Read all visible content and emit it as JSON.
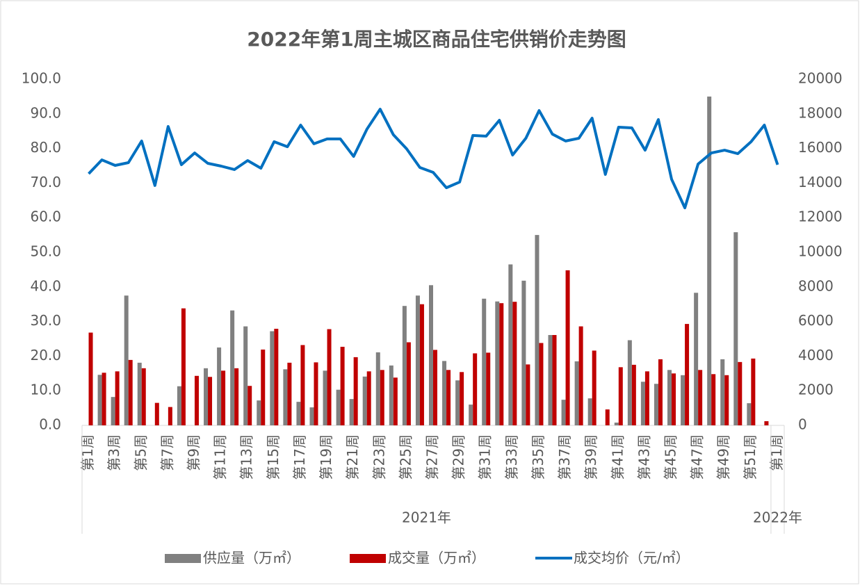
{
  "chart_data": {
    "type": "bar_line",
    "title": "2022年第1周主城区商品住宅供销价走势图",
    "categories": [
      "第1周",
      null,
      "第3周",
      null,
      "第5周",
      null,
      "第7周",
      null,
      "第9周",
      null,
      "第11周",
      null,
      "第13周",
      null,
      "第15周",
      null,
      "第17周",
      null,
      "第19周",
      null,
      "第21周",
      null,
      "第23周",
      null,
      "第25周",
      null,
      "第27周",
      null,
      "第29周",
      null,
      "第31周",
      null,
      "第33周",
      null,
      "第35周",
      null,
      "第37周",
      null,
      "第39周",
      null,
      "第41周",
      null,
      "第43周",
      null,
      "第45周",
      null,
      "第47周",
      null,
      "第49周",
      null,
      "第51周",
      null,
      "第1周"
    ],
    "group_labels": [
      "2021年",
      "2022年"
    ],
    "series": [
      {
        "name": "供应量（万㎡）",
        "type": "bar",
        "color": "#808080",
        "values": [
          0,
          14.6,
          8.2,
          37.5,
          18.1,
          0,
          0,
          11.3,
          0,
          16.5,
          22.5,
          33.2,
          28.6,
          7.2,
          27.2,
          16.2,
          6.8,
          5.2,
          15.8,
          10.3,
          7.6,
          14.1,
          21.1,
          17.3,
          34.5,
          37.5,
          40.5,
          18.6,
          13.0,
          6.0,
          36.6,
          35.8,
          46.5,
          41.8,
          55.0,
          26.1,
          7.4,
          18.5,
          7.8,
          0,
          0.8,
          24.6,
          12.6,
          12.0,
          16.0,
          14.5,
          38.3,
          95.0,
          19.1,
          55.8,
          6.4,
          0,
          0
        ]
      },
      {
        "name": "成交量（万㎡）",
        "type": "bar",
        "color": "#c00000",
        "values": [
          26.8,
          15.2,
          15.6,
          18.9,
          16.5,
          6.5,
          5.3,
          33.8,
          14.3,
          14.0,
          15.8,
          16.5,
          11.4,
          21.9,
          27.9,
          18.1,
          23.2,
          18.2,
          27.8,
          22.7,
          19.7,
          15.6,
          16.0,
          13.8,
          24.0,
          35.0,
          21.8,
          16.0,
          15.4,
          20.8,
          21.0,
          35.3,
          35.7,
          17.6,
          23.8,
          26.1,
          44.8,
          28.6,
          21.6,
          4.6,
          16.8,
          17.5,
          15.6,
          19.1,
          15.0,
          29.3,
          16.0,
          14.8,
          14.5,
          18.3,
          19.3,
          1.2,
          0
        ]
      },
      {
        "name": "成交均价（元/㎡）",
        "type": "line",
        "axis": "y2",
        "color": "#0070c0",
        "values": [
          14540,
          15340,
          15020,
          15180,
          16430,
          13860,
          17270,
          15060,
          15740,
          15140,
          14980,
          14780,
          15300,
          14860,
          16390,
          16100,
          17350,
          16270,
          16550,
          16550,
          15540,
          17110,
          18270,
          16790,
          15980,
          14900,
          14620,
          13730,
          14060,
          16750,
          16710,
          17630,
          15620,
          16590,
          18190,
          16830,
          16430,
          16590,
          17750,
          14500,
          17230,
          17190,
          15900,
          17670,
          14220,
          12570,
          15100,
          15740,
          15900,
          15700,
          16390,
          17350,
          15060
        ]
      }
    ],
    "ylim": [
      0,
      100
    ],
    "yticks": [
      {
        "value": 0,
        "label": "0.0"
      },
      {
        "value": 10,
        "label": "10.0"
      },
      {
        "value": 20,
        "label": "20.0"
      },
      {
        "value": 30,
        "label": "30.0"
      },
      {
        "value": 40,
        "label": "40.0"
      },
      {
        "value": 50,
        "label": "50.0"
      },
      {
        "value": 60,
        "label": "60.0"
      },
      {
        "value": 70,
        "label": "70.0"
      },
      {
        "value": 80,
        "label": "80.0"
      },
      {
        "value": 90,
        "label": "90.0"
      },
      {
        "value": 100,
        "label": "100.0"
      }
    ],
    "y2lim": [
      0,
      20000
    ],
    "y2ticks": [
      0,
      2000,
      4000,
      6000,
      8000,
      10000,
      12000,
      14000,
      16000,
      18000,
      20000
    ],
    "grid": false,
    "legend": "bottom"
  }
}
